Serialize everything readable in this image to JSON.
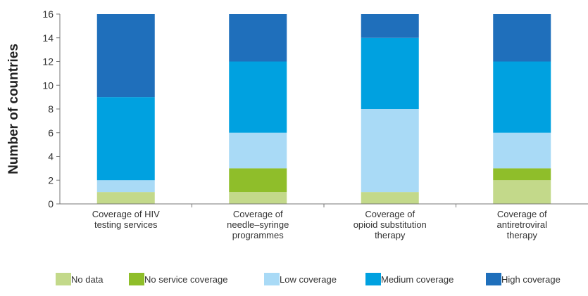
{
  "chart_data": {
    "type": "bar",
    "stacked": true,
    "ylabel": "Number of countries",
    "xlabel": "",
    "ylim": [
      0,
      16
    ],
    "yticks": [
      0,
      2,
      4,
      6,
      8,
      10,
      12,
      14,
      16
    ],
    "categories": [
      [
        "Coverage of HIV",
        "testing services"
      ],
      [
        "Coverage of",
        "needle–syringe",
        "programmes"
      ],
      [
        "Coverage of",
        "opioid substitution",
        "therapy"
      ],
      [
        "Coverage of",
        "antiretroviral",
        "therapy"
      ]
    ],
    "series": [
      {
        "name": "No data",
        "color": "#c3d98a",
        "values": [
          1,
          1,
          1,
          2
        ]
      },
      {
        "name": "No service coverage",
        "color": "#8fbe2a",
        "values": [
          0,
          2,
          0,
          1
        ]
      },
      {
        "name": "Low coverage",
        "color": "#a9daf6",
        "values": [
          1,
          3,
          7,
          3
        ]
      },
      {
        "name": "Medium coverage",
        "color": "#00a1e0",
        "values": [
          7,
          6,
          6,
          6
        ]
      },
      {
        "name": "High coverage",
        "color": "#1f6fbb",
        "values": [
          7,
          4,
          2,
          4
        ]
      }
    ],
    "grid": false,
    "legend_position": "bottom"
  }
}
